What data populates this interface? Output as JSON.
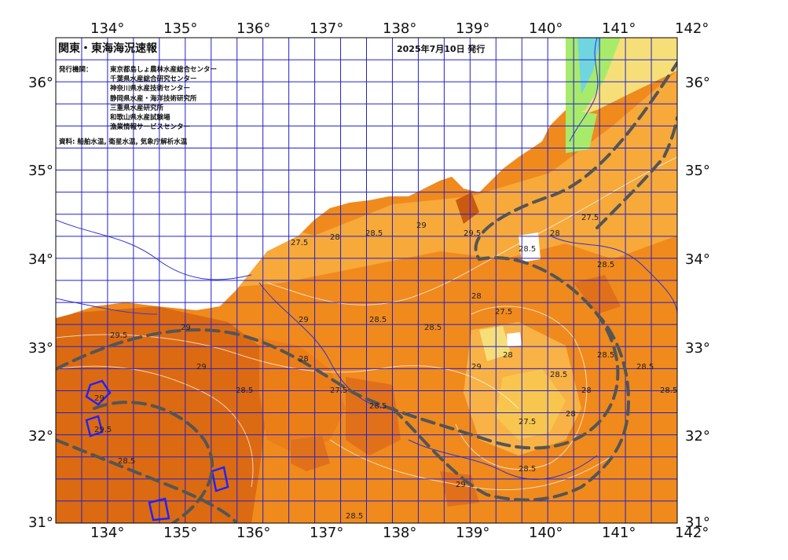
{
  "map": {
    "title": "関東・東海海況速報",
    "date": "2025年7月10日 発行",
    "issuers_label": "発行機関：",
    "issuers": [
      "東京都島しょ農林水産総合センター",
      "千葉県水産総合研究センター",
      "神奈川県水産技術センター",
      "静岡県水産・海洋技術研究所",
      "三重県水産研究所",
      "和歌山県水産試験場",
      "漁業情報サービスセンター"
    ],
    "sources": "資料: 船舶水温, 衛星水温, 気象庁解析水温",
    "lon_ticks": [
      "134°",
      "135°",
      "136°",
      "137°",
      "138°",
      "139°",
      "140°",
      "141°",
      "142°"
    ],
    "lat_ticks": [
      "36°",
      "35°",
      "34°",
      "33°",
      "32°",
      "31°"
    ],
    "isotherm_labels": [
      "27.5",
      "28",
      "28.5",
      "29",
      "29.5",
      "28.5",
      "28",
      "27.5",
      "28.5",
      "29",
      "29.5",
      "29",
      "28.5",
      "28",
      "27.5",
      "28.5",
      "29",
      "28",
      "28.5",
      "28",
      "27.5",
      "28.5",
      "29",
      "28.5",
      "28",
      "28.5",
      "28.5",
      "28.5",
      "29",
      "29.5",
      "28.5",
      "28",
      "27.5",
      "28.5",
      "29",
      "28.5"
    ],
    "colors": {
      "deep_orange": "#dc6a12",
      "orange": "#f08a1c",
      "light_orange": "#f7a93a",
      "yellow_orange": "#f8c64e",
      "pale_yellow": "#f6df78",
      "green": "#a8ea6a",
      "cyan": "#6fd6e0",
      "land": "#ffffff",
      "grid": "#2222cc",
      "kuroshio": "#555555"
    }
  }
}
